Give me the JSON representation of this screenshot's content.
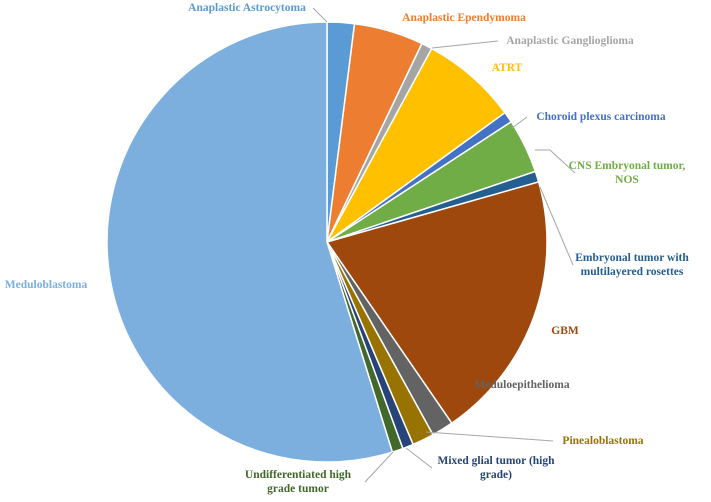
{
  "chart_data": {
    "type": "pie",
    "title": "",
    "legend": "none",
    "slices": [
      {
        "label": "Anaplastic Astrocytoma",
        "label_lines": [
          "Anaplastic Astrocytoma"
        ],
        "value": 2.0,
        "color": "#5b9bd5"
      },
      {
        "label": "Anaplastic Ependymoma",
        "label_lines": [
          "Anaplastic Ependymoma"
        ],
        "value": 5.1,
        "color": "#ed7d31"
      },
      {
        "label": "Anaplastic Ganglioglioma",
        "label_lines": [
          "Anaplastic Ganglioglioma"
        ],
        "value": 0.8,
        "color": "#a5a5a5"
      },
      {
        "label": "ATRT",
        "label_lines": [
          "ATRT"
        ],
        "value": 7.1,
        "color": "#ffc000"
      },
      {
        "label": "Choroid plexus carcinoma",
        "label_lines": [
          "Choroid plexus carcinoma"
        ],
        "value": 0.8,
        "color": "#4472c4"
      },
      {
        "label": "CNS Embryonal tumor, NOS",
        "label_lines": [
          "CNS Embryonal tumor,",
          "NOS"
        ],
        "value": 4.0,
        "color": "#70ad47"
      },
      {
        "label": "Embryonal tumor with multilayered rosettes",
        "label_lines": [
          "Embryonal tumor with",
          "multilayered rosettes"
        ],
        "value": 0.8,
        "color": "#255e91"
      },
      {
        "label": "GBM",
        "label_lines": [
          "GBM"
        ],
        "value": 19.8,
        "color": "#9e480e"
      },
      {
        "label": "Meduloepithelioma",
        "label_lines": [
          "Meduloepithelioma"
        ],
        "value": 1.6,
        "color": "#636363"
      },
      {
        "label": "Pinealoblastoma",
        "label_lines": [
          "Pinealoblastoma"
        ],
        "value": 1.6,
        "color": "#997300"
      },
      {
        "label": "Mixed glial tumor (high grade)",
        "label_lines": [
          "Mixed glial tumor (high",
          "grade)"
        ],
        "value": 0.8,
        "color": "#264478"
      },
      {
        "label": "Undifferentiated high grade tumor",
        "label_lines": [
          "Undifferentiated high",
          "grade tumor"
        ],
        "value": 0.8,
        "color": "#43682b"
      },
      {
        "label": "Meduloblastoma",
        "label_lines": [
          "Meduloblastoma"
        ],
        "value": 54.8,
        "color": "#7cafdd"
      }
    ]
  }
}
